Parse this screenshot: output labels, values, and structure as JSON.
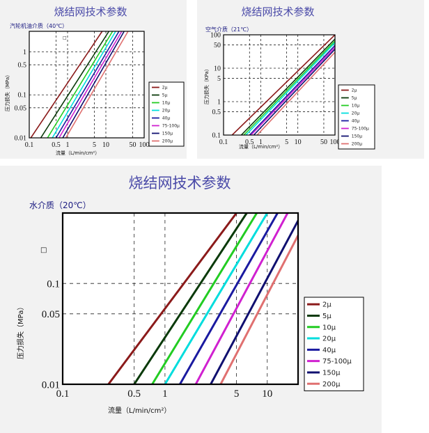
{
  "chart_data": [
    {
      "type": "line",
      "title": "烧结网技术参数",
      "medium": "汽轮机油介质（40℃）",
      "xlabel": "流量（L/min/cm²）",
      "ylabel": "压力损失（MPa）",
      "x_scale": "log",
      "y_scale": "log",
      "xlim": [
        0.1,
        100
      ],
      "ylim": [
        0.01,
        3
      ],
      "x_ticks": [
        "0.1",
        "0.5",
        "1",
        "5",
        "10",
        "50",
        "100"
      ],
      "y_ticks": [
        "1",
        "0.5",
        "0.1",
        "0.05",
        "0.01"
      ],
      "marker_label": "□",
      "grid": true,
      "legend_position": "right",
      "series": [
        {
          "name": "2μ",
          "color": "#8b1a1a",
          "x": [
            0.11,
            8.0
          ],
          "y": [
            0.01,
            3
          ]
        },
        {
          "name": "5μ",
          "color": "#0a3a0a",
          "x": [
            0.2,
            12.0
          ],
          "y": [
            0.01,
            3
          ]
        },
        {
          "name": "10μ",
          "color": "#22cc22",
          "x": [
            0.3,
            15.0
          ],
          "y": [
            0.01,
            3
          ]
        },
        {
          "name": "20μ",
          "color": "#00dddd",
          "x": [
            0.4,
            18.0
          ],
          "y": [
            0.01,
            3
          ]
        },
        {
          "name": "40μ",
          "color": "#1a1aa0",
          "x": [
            0.5,
            22.0
          ],
          "y": [
            0.01,
            3
          ]
        },
        {
          "name": "75-100μ",
          "color": "#d020d0",
          "x": [
            0.6,
            26.0
          ],
          "y": [
            0.01,
            3
          ]
        },
        {
          "name": "150μ",
          "color": "#101070",
          "x": [
            0.75,
            30.0
          ],
          "y": [
            0.01,
            3
          ]
        },
        {
          "name": "200μ",
          "color": "#e07070",
          "x": [
            0.9,
            38.0
          ],
          "y": [
            0.01,
            3
          ]
        }
      ]
    },
    {
      "type": "line",
      "title": "烧结网技术参数",
      "medium": "空气介质（21℃）",
      "xlabel": "流量（L/min/cm²）",
      "ylabel": "压力损失（KPa）",
      "x_scale": "log",
      "y_scale": "log",
      "xlim": [
        0.1,
        100
      ],
      "ylim": [
        0.1,
        100
      ],
      "x_ticks": [
        "0.1",
        "0.5",
        "1",
        "5",
        "10",
        "50",
        "100"
      ],
      "y_ticks": [
        "100",
        "50",
        "10",
        "5",
        "1",
        "0.5",
        "0.1"
      ],
      "grid": true,
      "legend_position": "right",
      "series": [
        {
          "name": "2μ",
          "color": "#8b1a1a",
          "x": [
            0.17,
            100
          ],
          "y": [
            0.1,
            100
          ]
        },
        {
          "name": "5μ",
          "color": "#0a3a0a",
          "x": [
            0.3,
            100
          ],
          "y": [
            0.1,
            75
          ]
        },
        {
          "name": "10μ",
          "color": "#22cc22",
          "x": [
            0.35,
            100
          ],
          "y": [
            0.1,
            65
          ]
        },
        {
          "name": "20μ",
          "color": "#00dddd",
          "x": [
            0.4,
            100
          ],
          "y": [
            0.1,
            58
          ]
        },
        {
          "name": "40μ",
          "color": "#1a1aa0",
          "x": [
            0.5,
            100
          ],
          "y": [
            0.1,
            48
          ]
        },
        {
          "name": "75-100μ",
          "color": "#d020d0",
          "x": [
            0.55,
            100
          ],
          "y": [
            0.1,
            42
          ]
        },
        {
          "name": "150μ",
          "color": "#101070",
          "x": [
            0.65,
            100
          ],
          "y": [
            0.1,
            37
          ]
        },
        {
          "name": "200μ",
          "color": "#e07070",
          "x": [
            0.8,
            100
          ],
          "y": [
            0.1,
            30
          ]
        }
      ]
    },
    {
      "type": "line",
      "title": "烧结网技术参数",
      "medium": "水介质（20℃）",
      "xlabel": "流量（L/min/cm²）",
      "ylabel": "压力损失（MPa）",
      "x_scale": "log",
      "y_scale": "log",
      "xlim": [
        0.1,
        20
      ],
      "ylim": [
        0.01,
        0.5
      ],
      "x_ticks": [
        "0.1",
        "0.5",
        "1",
        "5",
        "10"
      ],
      "y_ticks": [
        "0.1",
        "0.05",
        "0.01"
      ],
      "marker_label": "□",
      "grid": true,
      "legend_position": "right",
      "series": [
        {
          "name": "2μ",
          "color": "#8b1a1a",
          "x": [
            0.28,
            5.0
          ],
          "y": [
            0.01,
            0.5
          ]
        },
        {
          "name": "5μ",
          "color": "#0a3a0a",
          "x": [
            0.5,
            6.3
          ],
          "y": [
            0.01,
            0.5
          ]
        },
        {
          "name": "10μ",
          "color": "#22cc22",
          "x": [
            0.75,
            7.9
          ],
          "y": [
            0.01,
            0.5
          ]
        },
        {
          "name": "20μ",
          "color": "#00dddd",
          "x": [
            1.0,
            10.0
          ],
          "y": [
            0.01,
            0.5
          ]
        },
        {
          "name": "40μ",
          "color": "#1a1aa0",
          "x": [
            1.4,
            12.6
          ],
          "y": [
            0.01,
            0.5
          ]
        },
        {
          "name": "75-100μ",
          "color": "#d020d0",
          "x": [
            2.0,
            15.8
          ],
          "y": [
            0.01,
            0.5
          ]
        },
        {
          "name": "150μ",
          "color": "#101070",
          "x": [
            2.8,
            20.0
          ],
          "y": [
            0.01,
            0.42
          ]
        },
        {
          "name": "200μ",
          "color": "#e07070",
          "x": [
            3.5,
            20.0
          ],
          "y": [
            0.01,
            0.3
          ]
        }
      ]
    }
  ]
}
